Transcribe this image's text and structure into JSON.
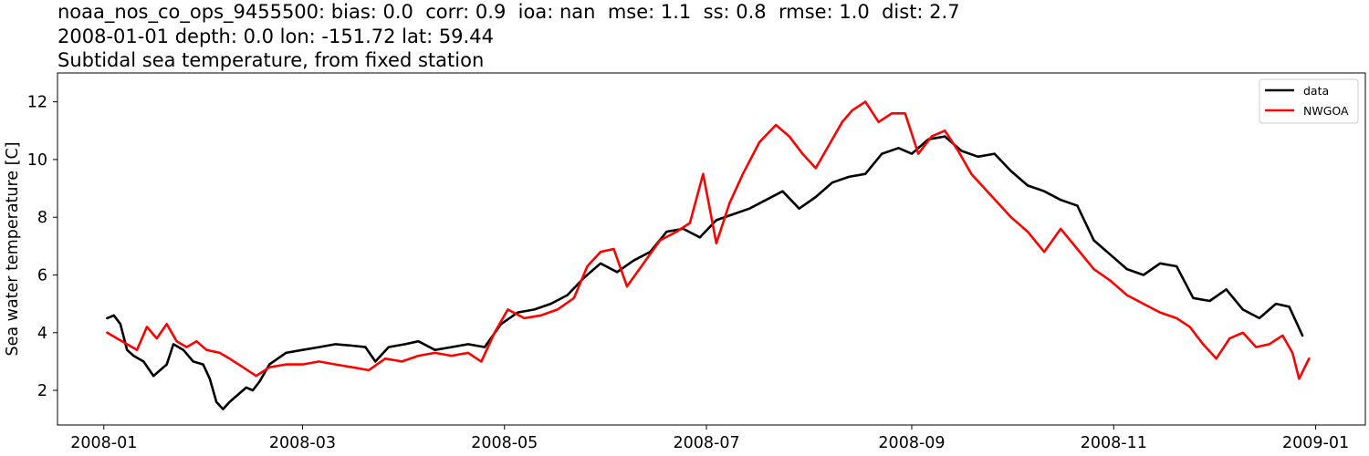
{
  "title_lines": [
    "noaa_nos_co_ops_9455500: bias: 0.0  corr: 0.9  ioa: nan  mse: 1.1  ss: 0.8  rmse: 1.0  dist: 2.7",
    "2008-01-01 depth: 0.0 lon: -151.72 lat: 59.44",
    "Subtidal sea temperature, from fixed station"
  ],
  "chart_data": {
    "type": "line",
    "title": "noaa_nos_co_ops_9455500: bias: 0.0  corr: 0.9  ioa: nan  mse: 1.1  ss: 0.8  rmse: 1.0  dist: 2.7 / 2008-01-01 depth: 0.0 lon: -151.72 lat: 59.44 / Subtidal sea temperature, from fixed station",
    "xlabel": "",
    "ylabel": "Sea water temperature [C]",
    "xlim": [
      "2007-12-18",
      "2009-01-16"
    ],
    "ylim": [
      0.8,
      13.0
    ],
    "x_ticks": [
      "2008-01",
      "2008-03",
      "2008-05",
      "2008-07",
      "2008-09",
      "2008-11",
      "2009-01"
    ],
    "y_ticks": [
      2,
      4,
      6,
      8,
      10,
      12
    ],
    "grid": false,
    "legend_position": "top-right",
    "series": [
      {
        "name": "data",
        "color": "#000000",
        "x": [
          "2008-01-02",
          "2008-01-04",
          "2008-01-06",
          "2008-01-08",
          "2008-01-10",
          "2008-01-13",
          "2008-01-16",
          "2008-01-20",
          "2008-01-22",
          "2008-01-25",
          "2008-01-28",
          "2008-01-31",
          "2008-02-02",
          "2008-02-04",
          "2008-02-06",
          "2008-02-08",
          "2008-02-10",
          "2008-02-13",
          "2008-02-15",
          "2008-02-17",
          "2008-02-20",
          "2008-02-25",
          "2008-03-01",
          "2008-03-06",
          "2008-03-11",
          "2008-03-16",
          "2008-03-20",
          "2008-03-23",
          "2008-03-27",
          "2008-04-01",
          "2008-04-05",
          "2008-04-10",
          "2008-04-15",
          "2008-04-20",
          "2008-04-25",
          "2008-04-30",
          "2008-05-05",
          "2008-05-10",
          "2008-05-15",
          "2008-05-20",
          "2008-05-25",
          "2008-05-30",
          "2008-06-04",
          "2008-06-09",
          "2008-06-14",
          "2008-06-19",
          "2008-06-24",
          "2008-06-29",
          "2008-07-04",
          "2008-07-09",
          "2008-07-14",
          "2008-07-19",
          "2008-07-24",
          "2008-07-29",
          "2008-08-03",
          "2008-08-08",
          "2008-08-13",
          "2008-08-18",
          "2008-08-23",
          "2008-08-28",
          "2008-09-01",
          "2008-09-06",
          "2008-09-11",
          "2008-09-16",
          "2008-09-21",
          "2008-09-26",
          "2008-10-01",
          "2008-10-06",
          "2008-10-11",
          "2008-10-16",
          "2008-10-21",
          "2008-10-26",
          "2008-10-31",
          "2008-11-05",
          "2008-11-10",
          "2008-11-15",
          "2008-11-20",
          "2008-11-25",
          "2008-11-30",
          "2008-12-05",
          "2008-12-10",
          "2008-12-15",
          "2008-12-20",
          "2008-12-24",
          "2008-12-28"
        ],
        "values": [
          4.5,
          4.6,
          4.3,
          3.4,
          3.2,
          3.0,
          2.5,
          2.9,
          3.6,
          3.4,
          3.0,
          2.9,
          2.4,
          1.6,
          1.35,
          1.6,
          1.8,
          2.1,
          2.0,
          2.3,
          2.9,
          3.3,
          3.4,
          3.5,
          3.6,
          3.55,
          3.5,
          3.0,
          3.5,
          3.6,
          3.7,
          3.4,
          3.5,
          3.6,
          3.5,
          4.3,
          4.7,
          4.8,
          5.0,
          5.3,
          5.9,
          6.4,
          6.1,
          6.5,
          6.8,
          7.5,
          7.6,
          7.3,
          7.9,
          8.1,
          8.3,
          8.6,
          8.9,
          8.3,
          8.7,
          9.2,
          9.4,
          9.5,
          10.2,
          10.4,
          10.2,
          10.7,
          10.8,
          10.3,
          10.1,
          10.2,
          9.6,
          9.1,
          8.9,
          8.6,
          8.4,
          7.2,
          6.7,
          6.2,
          6.0,
          6.4,
          6.3,
          5.2,
          5.1,
          5.5,
          4.8,
          4.5,
          5.0,
          4.9,
          3.9
        ]
      },
      {
        "name": "NWGOA",
        "color": "#ff0000",
        "x": [
          "2008-01-02",
          "2008-01-05",
          "2008-01-08",
          "2008-01-11",
          "2008-01-14",
          "2008-01-17",
          "2008-01-20",
          "2008-01-23",
          "2008-01-26",
          "2008-01-29",
          "2008-02-01",
          "2008-02-05",
          "2008-02-08",
          "2008-02-12",
          "2008-02-16",
          "2008-02-20",
          "2008-02-25",
          "2008-03-01",
          "2008-03-06",
          "2008-03-11",
          "2008-03-16",
          "2008-03-21",
          "2008-03-26",
          "2008-03-31",
          "2008-04-05",
          "2008-04-10",
          "2008-04-15",
          "2008-04-20",
          "2008-04-24",
          "2008-04-28",
          "2008-05-02",
          "2008-05-07",
          "2008-05-12",
          "2008-05-17",
          "2008-05-22",
          "2008-05-26",
          "2008-05-30",
          "2008-06-03",
          "2008-06-07",
          "2008-06-12",
          "2008-06-17",
          "2008-06-22",
          "2008-06-26",
          "2008-06-30",
          "2008-07-04",
          "2008-07-08",
          "2008-07-12",
          "2008-07-17",
          "2008-07-22",
          "2008-07-26",
          "2008-07-30",
          "2008-08-03",
          "2008-08-07",
          "2008-08-11",
          "2008-08-14",
          "2008-08-18",
          "2008-08-22",
          "2008-08-26",
          "2008-08-30",
          "2008-09-03",
          "2008-09-07",
          "2008-09-11",
          "2008-09-15",
          "2008-09-19",
          "2008-09-23",
          "2008-09-27",
          "2008-10-01",
          "2008-10-06",
          "2008-10-11",
          "2008-10-16",
          "2008-10-21",
          "2008-10-26",
          "2008-10-31",
          "2008-11-05",
          "2008-11-10",
          "2008-11-15",
          "2008-11-20",
          "2008-11-24",
          "2008-11-28",
          "2008-12-02",
          "2008-12-06",
          "2008-12-10",
          "2008-12-14",
          "2008-12-18",
          "2008-12-22",
          "2008-12-25",
          "2008-12-27",
          "2008-12-30"
        ],
        "values": [
          4.0,
          3.8,
          3.6,
          3.4,
          4.2,
          3.8,
          4.3,
          3.7,
          3.5,
          3.7,
          3.4,
          3.3,
          3.1,
          2.8,
          2.5,
          2.8,
          2.9,
          2.9,
          3.0,
          2.9,
          2.8,
          2.7,
          3.1,
          3.0,
          3.2,
          3.3,
          3.2,
          3.3,
          3.0,
          4.0,
          4.8,
          4.5,
          4.6,
          4.8,
          5.2,
          6.3,
          6.8,
          6.9,
          5.6,
          6.4,
          7.2,
          7.5,
          7.8,
          9.5,
          7.1,
          8.5,
          9.5,
          10.6,
          11.2,
          10.8,
          10.2,
          9.7,
          10.5,
          11.3,
          11.7,
          12.0,
          11.3,
          11.6,
          11.6,
          10.2,
          10.8,
          11.0,
          10.3,
          9.5,
          9.0,
          8.5,
          8.0,
          7.5,
          6.8,
          7.6,
          6.9,
          6.2,
          5.8,
          5.3,
          5.0,
          4.7,
          4.5,
          4.2,
          3.6,
          3.1,
          3.8,
          4.0,
          3.5,
          3.6,
          3.9,
          3.3,
          2.4,
          3.1
        ]
      }
    ]
  }
}
